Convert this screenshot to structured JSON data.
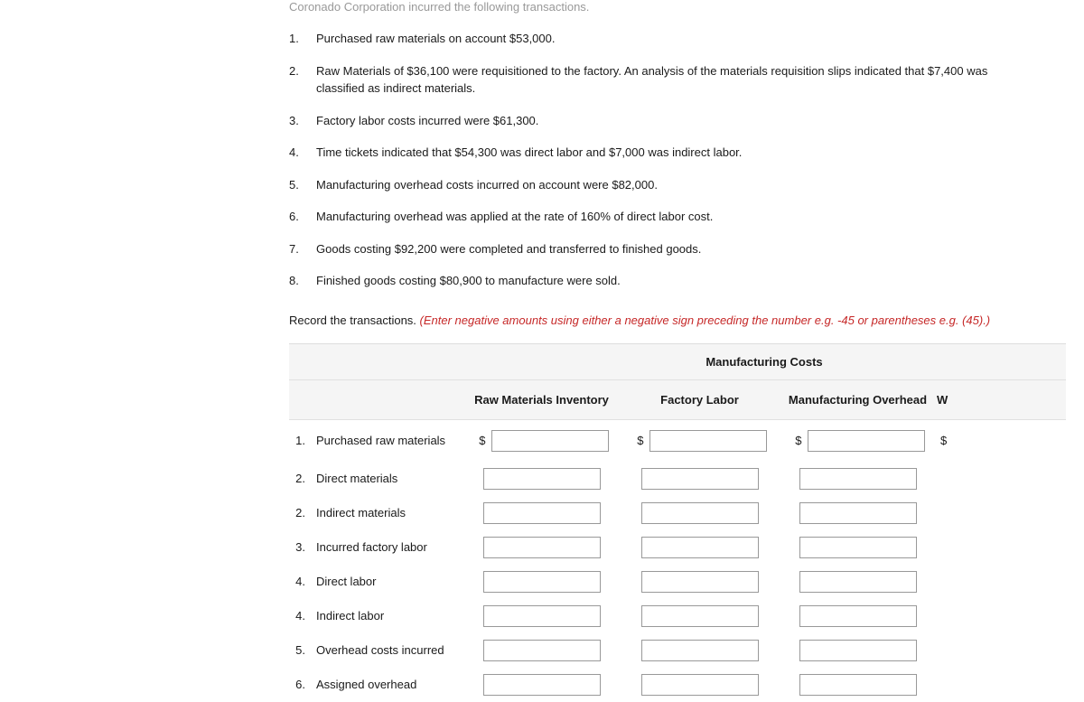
{
  "intro_partial": "Coronado Corporation incurred the following transactions.",
  "transactions": [
    {
      "num": "1.",
      "text": "Purchased raw materials on account $53,000."
    },
    {
      "num": "2.",
      "text": "Raw Materials of $36,100 were requisitioned to the factory. An analysis of the materials requisition slips indicated that $7,400 was classified as indirect materials."
    },
    {
      "num": "3.",
      "text": "Factory labor costs incurred were $61,300."
    },
    {
      "num": "4.",
      "text": "Time tickets indicated that $54,300 was direct labor and $7,000 was indirect labor."
    },
    {
      "num": "5.",
      "text": "Manufacturing overhead costs incurred on account were $82,000."
    },
    {
      "num": "6.",
      "text": "Manufacturing overhead was applied at the rate of 160% of direct labor cost."
    },
    {
      "num": "7.",
      "text": "Goods costing $92,200 were completed and transferred to finished goods."
    },
    {
      "num": "8.",
      "text": "Finished goods costing $80,900 to manufacture were sold."
    }
  ],
  "instruction_plain": "Record the transactions. ",
  "instruction_red": "(Enter negative amounts using either a negative sign preceding the number e.g. -45 or parentheses e.g. (45).)",
  "group_header": "Manufacturing Costs",
  "col_headers": {
    "c1": "Raw Materials Inventory",
    "c2": "Factory Labor",
    "c3": "Manufacturing Overhead",
    "extra": "W"
  },
  "rows": [
    {
      "num": "1.",
      "label": "Purchased raw materials"
    },
    {
      "num": "2.",
      "label": "Direct materials"
    },
    {
      "num": "2.",
      "label": "Indirect materials"
    },
    {
      "num": "3.",
      "label": "Incurred factory labor"
    },
    {
      "num": "4.",
      "label": "Direct labor"
    },
    {
      "num": "4.",
      "label": "Indirect labor"
    },
    {
      "num": "5.",
      "label": "Overhead costs incurred"
    },
    {
      "num": "6.",
      "label": "Assigned overhead"
    }
  ],
  "dollar": "$"
}
